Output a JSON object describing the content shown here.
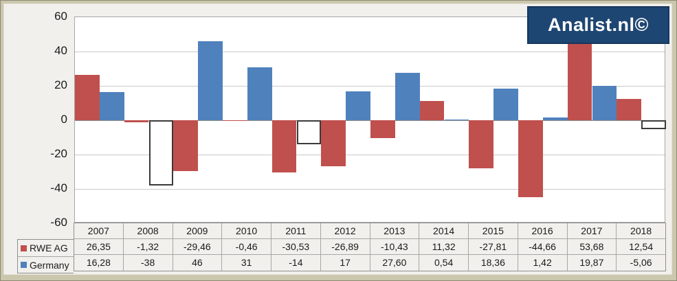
{
  "logo": {
    "text": "Analist.nl©",
    "bg_color": "#1E4672",
    "border_color": "#16365C"
  },
  "colors": {
    "frame": "#CBC7AE",
    "canvas_background": "#F1F0EC",
    "plot_background": "#FFFFFF",
    "gridline": "#C9C9C9",
    "zero_line": "#8C8C8C",
    "rwe_red": "#C0504D",
    "germany_blue": "#4F81BD"
  },
  "chart_data": {
    "type": "bar",
    "title": "",
    "categories": [
      "2007",
      "2008",
      "2009",
      "2010",
      "2011",
      "2012",
      "2013",
      "2014",
      "2015",
      "2016",
      "2017",
      "2018"
    ],
    "series": [
      {
        "name": "RWE AG",
        "color": "#C0504D",
        "invert_if_negative": false,
        "values": [
          26.35,
          -1.32,
          -29.46,
          -0.46,
          -30.53,
          -26.89,
          -10.43,
          11.32,
          -27.81,
          -44.66,
          53.68,
          12.54
        ],
        "labels": [
          "26,35",
          "-1,32",
          "-29,46",
          "-0,46",
          "-30,53",
          "-26,89",
          "-10,43",
          "11,32",
          "-27,81",
          "-44,66",
          "53,68",
          "12,54"
        ]
      },
      {
        "name": "Germany",
        "color": "#4F81BD",
        "invert_if_negative": true,
        "values": [
          16.28,
          -38,
          46,
          31,
          -14,
          17,
          27.6,
          0.54,
          18.36,
          1.42,
          19.87,
          -5.06
        ],
        "labels": [
          "16,28",
          "-38",
          "46",
          "31",
          "-14",
          "17",
          "27,60",
          "0,54",
          "18,36",
          "1,42",
          "19,87",
          "-5,06"
        ]
      }
    ],
    "ylim": [
      -60,
      60
    ],
    "y_ticks": [
      60,
      40,
      20,
      0,
      -20,
      -40,
      -60
    ],
    "grid": true,
    "legend_position": "table-left",
    "note_negative_germany_bars": "drawn white with dark outline (invert if negative)"
  }
}
